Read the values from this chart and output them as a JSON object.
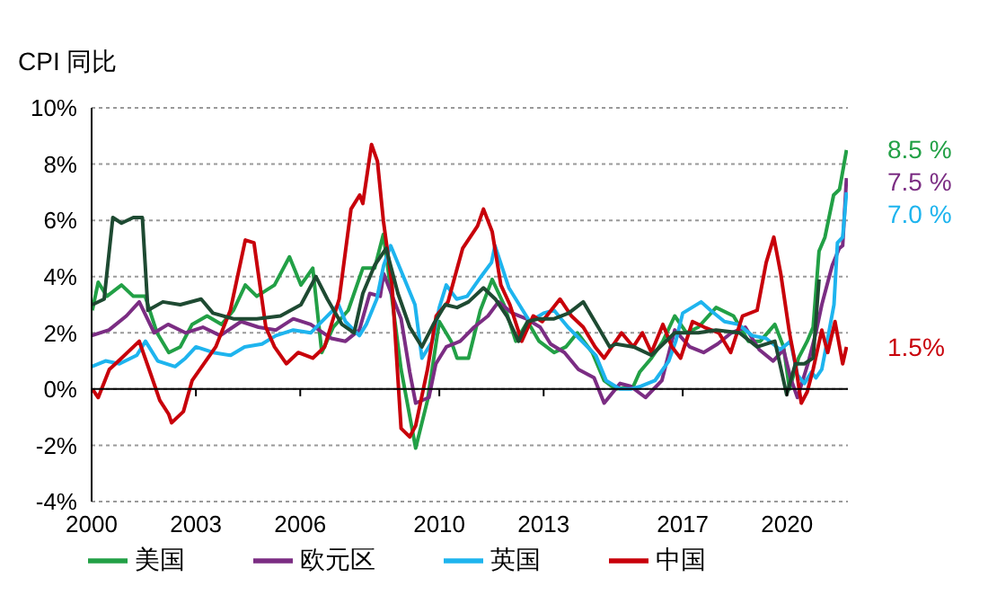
{
  "chart_data": {
    "type": "line",
    "title": "CPI 同比",
    "xlim": [
      2000,
      2021.75
    ],
    "xticks": [
      2000,
      2003,
      2006,
      2010,
      2013,
      2017,
      2020
    ],
    "ylim": [
      -4,
      10
    ],
    "yticks": [
      {
        "value": -4,
        "label": "-4%"
      },
      {
        "value": -2,
        "label": "-2%"
      },
      {
        "value": 0,
        "label": "0%"
      },
      {
        "value": 2,
        "label": "2%"
      },
      {
        "value": 4,
        "label": "4%"
      },
      {
        "value": 6,
        "label": "6%"
      },
      {
        "value": 8,
        "label": "8%"
      },
      {
        "value": 10,
        "label": "10%"
      }
    ],
    "grid": "y",
    "legend": "bottom",
    "marker": "none",
    "line_style": "solid",
    "series": [
      {
        "name": "美国",
        "color": "#22a046",
        "x": [
          2000.02,
          2000.19,
          2000.44,
          2000.86,
          2001.2,
          2001.54,
          2001.88,
          2002.22,
          2002.55,
          2002.89,
          2003.32,
          2003.74,
          2004.08,
          2004.42,
          2004.75,
          2005.26,
          2005.69,
          2006.02,
          2006.36,
          2006.62,
          2006.95,
          2007.38,
          2007.8,
          2008.14,
          2008.39,
          2008.64,
          2008.9,
          2009.32,
          2009.66,
          2010.0,
          2010.34,
          2010.51,
          2010.84,
          2011.18,
          2011.52,
          2011.86,
          2012.2,
          2012.54,
          2012.87,
          2013.3,
          2013.64,
          2013.97,
          2014.4,
          2014.74,
          2015.07,
          2015.58,
          2015.76,
          2016.1,
          2016.43,
          2016.77,
          2017.11,
          2017.45,
          2017.96,
          2018.46,
          2018.89,
          2019.23,
          2019.65,
          2019.9,
          2020.07,
          2020.33,
          2020.58,
          2020.75,
          2020.92,
          2021.09,
          2021.34,
          2021.51,
          2021.71
        ],
        "values": [
          2.8,
          3.8,
          3.3,
          3.7,
          3.3,
          3.3,
          2.0,
          1.3,
          1.5,
          2.3,
          2.6,
          2.3,
          2.8,
          3.7,
          3.3,
          3.7,
          4.7,
          3.7,
          4.3,
          1.3,
          2.2,
          2.8,
          4.3,
          4.3,
          5.5,
          3.2,
          0.7,
          -2.1,
          -0.4,
          2.4,
          1.7,
          1.1,
          1.1,
          2.8,
          3.9,
          3.0,
          1.7,
          2.4,
          1.7,
          1.3,
          1.5,
          2.0,
          1.3,
          0.3,
          0.0,
          0.1,
          0.6,
          1.1,
          1.7,
          2.6,
          2.0,
          2.2,
          2.9,
          2.6,
          1.7,
          1.7,
          2.3,
          1.5,
          0.0,
          1.1,
          1.7,
          2.2,
          4.9,
          5.4,
          6.9,
          7.1,
          8.5
        ],
        "value_labels": [
          null,
          null,
          null,
          null,
          null,
          null,
          null,
          null,
          null,
          null,
          null,
          null,
          null,
          null,
          null,
          null,
          null,
          null,
          null,
          null,
          null,
          null,
          null,
          null,
          null,
          null,
          null,
          null,
          null,
          null,
          null,
          null,
          null,
          null,
          null,
          null,
          null,
          null,
          null,
          null,
          null,
          null,
          null,
          null,
          null,
          null,
          null,
          null,
          null,
          null,
          null,
          null,
          null,
          null,
          null,
          null,
          null,
          null,
          null,
          null,
          null,
          null,
          null,
          null,
          null,
          null,
          "8.5 %"
        ]
      },
      {
        "name": "欧元区",
        "color": "#7b2d83",
        "x": [
          2000.0,
          2000.5,
          2001.0,
          2001.37,
          2001.8,
          2002.2,
          2002.7,
          2003.2,
          2003.7,
          2004.3,
          2004.8,
          2005.3,
          2005.8,
          2006.3,
          2006.9,
          2007.3,
          2007.7,
          2008.0,
          2008.3,
          2008.4,
          2008.9,
          2009.15,
          2009.32,
          2009.7,
          2009.9,
          2010.2,
          2010.6,
          2011.0,
          2011.4,
          2011.7,
          2012.1,
          2012.5,
          2012.9,
          2013.2,
          2013.6,
          2014.0,
          2014.45,
          2014.74,
          2015.2,
          2015.5,
          2015.93,
          2016.4,
          2016.77,
          2017.2,
          2017.6,
          2018.0,
          2018.4,
          2018.8,
          2019.2,
          2019.6,
          2019.9,
          2020.1,
          2020.3,
          2020.6,
          2020.83,
          2021.0,
          2021.3,
          2021.5,
          2021.6,
          2021.71
        ],
        "values": [
          1.9,
          2.1,
          2.6,
          3.1,
          2.0,
          2.3,
          2.0,
          2.2,
          1.9,
          2.4,
          2.2,
          2.1,
          2.5,
          2.3,
          1.8,
          1.7,
          2.1,
          3.4,
          3.3,
          4.1,
          2.5,
          0.6,
          -0.5,
          -0.3,
          0.9,
          1.5,
          1.7,
          2.2,
          2.6,
          3.1,
          2.7,
          2.5,
          2.2,
          1.6,
          1.3,
          0.7,
          0.4,
          -0.5,
          0.2,
          0.1,
          -0.3,
          0.3,
          2.1,
          1.5,
          1.3,
          1.6,
          2.0,
          2.2,
          1.4,
          1.0,
          1.4,
          0.4,
          -0.3,
          0.9,
          2.0,
          3.0,
          4.4,
          5.0,
          5.1,
          7.5
        ],
        "value_labels": [
          null,
          null,
          null,
          null,
          null,
          null,
          null,
          null,
          null,
          null,
          null,
          null,
          null,
          null,
          null,
          null,
          null,
          null,
          null,
          null,
          null,
          null,
          null,
          null,
          null,
          null,
          null,
          null,
          null,
          null,
          null,
          null,
          null,
          null,
          null,
          null,
          null,
          null,
          null,
          null,
          null,
          null,
          null,
          null,
          null,
          null,
          null,
          null,
          null,
          null,
          null,
          null,
          null,
          null,
          null,
          null,
          null,
          null,
          null,
          "7.5 %"
        ]
      },
      {
        "name": "英国",
        "color": "#1eb4ee",
        "x": [
          2000.0,
          2000.4,
          2000.8,
          2001.3,
          2001.55,
          2001.9,
          2002.4,
          2002.7,
          2003.0,
          2003.5,
          2004.0,
          2004.4,
          2004.9,
          2005.3,
          2005.8,
          2006.3,
          2006.7,
          2007.1,
          2007.3,
          2007.7,
          2007.9,
          2008.2,
          2008.4,
          2008.6,
          2009.0,
          2009.3,
          2009.5,
          2009.8,
          2010.0,
          2010.2,
          2010.5,
          2010.8,
          2011.2,
          2011.5,
          2011.6,
          2012.0,
          2012.3,
          2012.6,
          2013.0,
          2013.3,
          2013.7,
          2014.1,
          2014.5,
          2014.8,
          2015.2,
          2015.5,
          2015.8,
          2016.2,
          2016.6,
          2016.8,
          2017.0,
          2017.53,
          2017.8,
          2018.2,
          2018.6,
          2019.0,
          2019.4,
          2019.8,
          2020.1,
          2020.3,
          2020.5,
          2020.7,
          2020.83,
          2021.0,
          2021.2,
          2021.35,
          2021.45,
          2021.6,
          2021.71
        ],
        "values": [
          0.8,
          1.0,
          0.9,
          1.2,
          1.7,
          1.0,
          0.8,
          1.1,
          1.5,
          1.3,
          1.2,
          1.5,
          1.6,
          1.9,
          2.1,
          2.0,
          2.5,
          3.0,
          2.4,
          1.9,
          2.3,
          3.2,
          4.4,
          5.1,
          3.9,
          3.0,
          1.1,
          1.7,
          2.9,
          3.7,
          3.2,
          3.3,
          4.0,
          4.5,
          5.1,
          3.6,
          3.0,
          2.4,
          2.7,
          2.8,
          2.2,
          1.7,
          1.2,
          0.3,
          0.0,
          0.0,
          0.1,
          0.3,
          1.0,
          1.7,
          2.7,
          3.1,
          2.8,
          2.4,
          2.3,
          1.9,
          1.8,
          1.4,
          1.7,
          0.5,
          0.2,
          0.6,
          0.4,
          0.7,
          2.0,
          3.0,
          5.2,
          5.4,
          7.0
        ],
        "value_labels": [
          null,
          null,
          null,
          null,
          null,
          null,
          null,
          null,
          null,
          null,
          null,
          null,
          null,
          null,
          null,
          null,
          null,
          null,
          null,
          null,
          null,
          null,
          null,
          null,
          null,
          null,
          null,
          null,
          null,
          null,
          null,
          null,
          null,
          null,
          null,
          null,
          null,
          null,
          null,
          null,
          null,
          null,
          null,
          null,
          null,
          null,
          null,
          null,
          null,
          null,
          null,
          null,
          null,
          null,
          null,
          null,
          null,
          null,
          null,
          null,
          null,
          null,
          null,
          null,
          null,
          null,
          null,
          null,
          "7.0 %"
        ]
      },
      {
        "name": "中国",
        "color": "#c8000a",
        "x": [
          2000.02,
          2000.19,
          2000.51,
          2000.86,
          2001.37,
          2001.71,
          2001.96,
          2002.22,
          2002.3,
          2002.64,
          2002.89,
          2003.23,
          2003.57,
          2003.99,
          2004.42,
          2004.67,
          2004.84,
          2005.01,
          2005.26,
          2005.6,
          2005.94,
          2006.36,
          2006.7,
          2007.12,
          2007.46,
          2007.71,
          2007.8,
          2008.05,
          2008.22,
          2008.39,
          2008.64,
          2008.9,
          2009.15,
          2009.32,
          2009.66,
          2009.91,
          2010.25,
          2010.67,
          2011.1,
          2011.27,
          2011.52,
          2011.77,
          2012.03,
          2012.37,
          2012.7,
          2012.96,
          2013.47,
          2013.8,
          2014.14,
          2014.48,
          2014.74,
          2015.24,
          2015.58,
          2015.84,
          2016.1,
          2016.43,
          2016.69,
          2016.94,
          2017.28,
          2017.62,
          2018.04,
          2018.38,
          2018.72,
          2019.14,
          2019.4,
          2019.62,
          2019.82,
          2020.07,
          2020.24,
          2020.41,
          2020.58,
          2020.75,
          2021.0,
          2021.17,
          2021.38,
          2021.6,
          2021.71
        ],
        "values": [
          0.0,
          -0.3,
          0.7,
          1.1,
          1.7,
          0.5,
          -0.4,
          -0.9,
          -1.2,
          -0.8,
          0.3,
          0.9,
          1.5,
          2.8,
          5.3,
          5.2,
          3.7,
          2.2,
          1.5,
          0.9,
          1.3,
          1.1,
          1.5,
          3.2,
          6.4,
          6.9,
          6.6,
          8.7,
          8.1,
          6.0,
          3.7,
          -1.4,
          -1.7,
          -1.3,
          0.7,
          2.6,
          3.1,
          5.0,
          5.8,
          6.4,
          5.6,
          3.7,
          3.0,
          1.7,
          2.6,
          2.4,
          3.2,
          2.6,
          2.2,
          1.5,
          1.1,
          2.0,
          1.5,
          2.0,
          1.3,
          2.3,
          1.5,
          1.1,
          2.4,
          2.2,
          2.0,
          1.3,
          2.6,
          2.8,
          4.5,
          5.4,
          4.1,
          2.0,
          0.9,
          -0.5,
          -0.1,
          0.7,
          2.1,
          1.3,
          2.4,
          0.9,
          1.5
        ],
        "value_labels": [
          null,
          null,
          null,
          null,
          null,
          null,
          null,
          null,
          null,
          null,
          null,
          null,
          null,
          null,
          null,
          null,
          null,
          null,
          null,
          null,
          null,
          null,
          null,
          null,
          null,
          null,
          null,
          null,
          null,
          null,
          null,
          null,
          null,
          null,
          null,
          null,
          null,
          null,
          null,
          null,
          null,
          null,
          null,
          null,
          null,
          null,
          null,
          null,
          null,
          null,
          null,
          null,
          null,
          null,
          null,
          null,
          null,
          null,
          null,
          null,
          null,
          null,
          null,
          null,
          null,
          null,
          null,
          null,
          null,
          null,
          null,
          null,
          null,
          null,
          null,
          null,
          "1.5%"
        ]
      },
      {
        "color": "#1e4a32",
        "x": [
          2000.02,
          2000.36,
          2000.61,
          2000.86,
          2001.2,
          2001.46,
          2001.62,
          2002.05,
          2002.55,
          2003.15,
          2003.49,
          2004.08,
          2004.75,
          2005.43,
          2006.02,
          2006.45,
          2006.78,
          2007.2,
          2007.55,
          2007.8,
          2008.14,
          2008.47,
          2008.81,
          2009.15,
          2009.5,
          2009.83,
          2010.17,
          2010.51,
          2010.84,
          2011.27,
          2011.61,
          2011.94,
          2012.28,
          2012.54,
          2012.87,
          2013.3,
          2013.72,
          2014.14,
          2014.57,
          2014.9,
          2015.08,
          2015.59,
          2016.1,
          2016.77,
          2017.45,
          2017.96,
          2018.63,
          2019.14,
          2019.65,
          2019.99,
          2020.24,
          2020.5,
          2020.75,
          2020.92
        ],
        "values": [
          3.0,
          3.2,
          6.1,
          5.9,
          6.1,
          6.1,
          2.8,
          3.1,
          3.0,
          3.2,
          2.7,
          2.5,
          2.5,
          2.6,
          3.0,
          4.0,
          3.2,
          2.3,
          2.0,
          3.4,
          4.4,
          5.0,
          3.4,
          2.2,
          1.5,
          2.3,
          3.0,
          2.9,
          3.1,
          3.6,
          3.2,
          2.6,
          1.7,
          2.4,
          2.5,
          2.5,
          2.7,
          3.1,
          2.2,
          1.5,
          1.6,
          1.5,
          1.2,
          2.0,
          2.0,
          2.1,
          2.0,
          1.5,
          1.7,
          -0.2,
          0.9,
          0.9,
          1.1,
          3.9
        ]
      }
    ]
  }
}
